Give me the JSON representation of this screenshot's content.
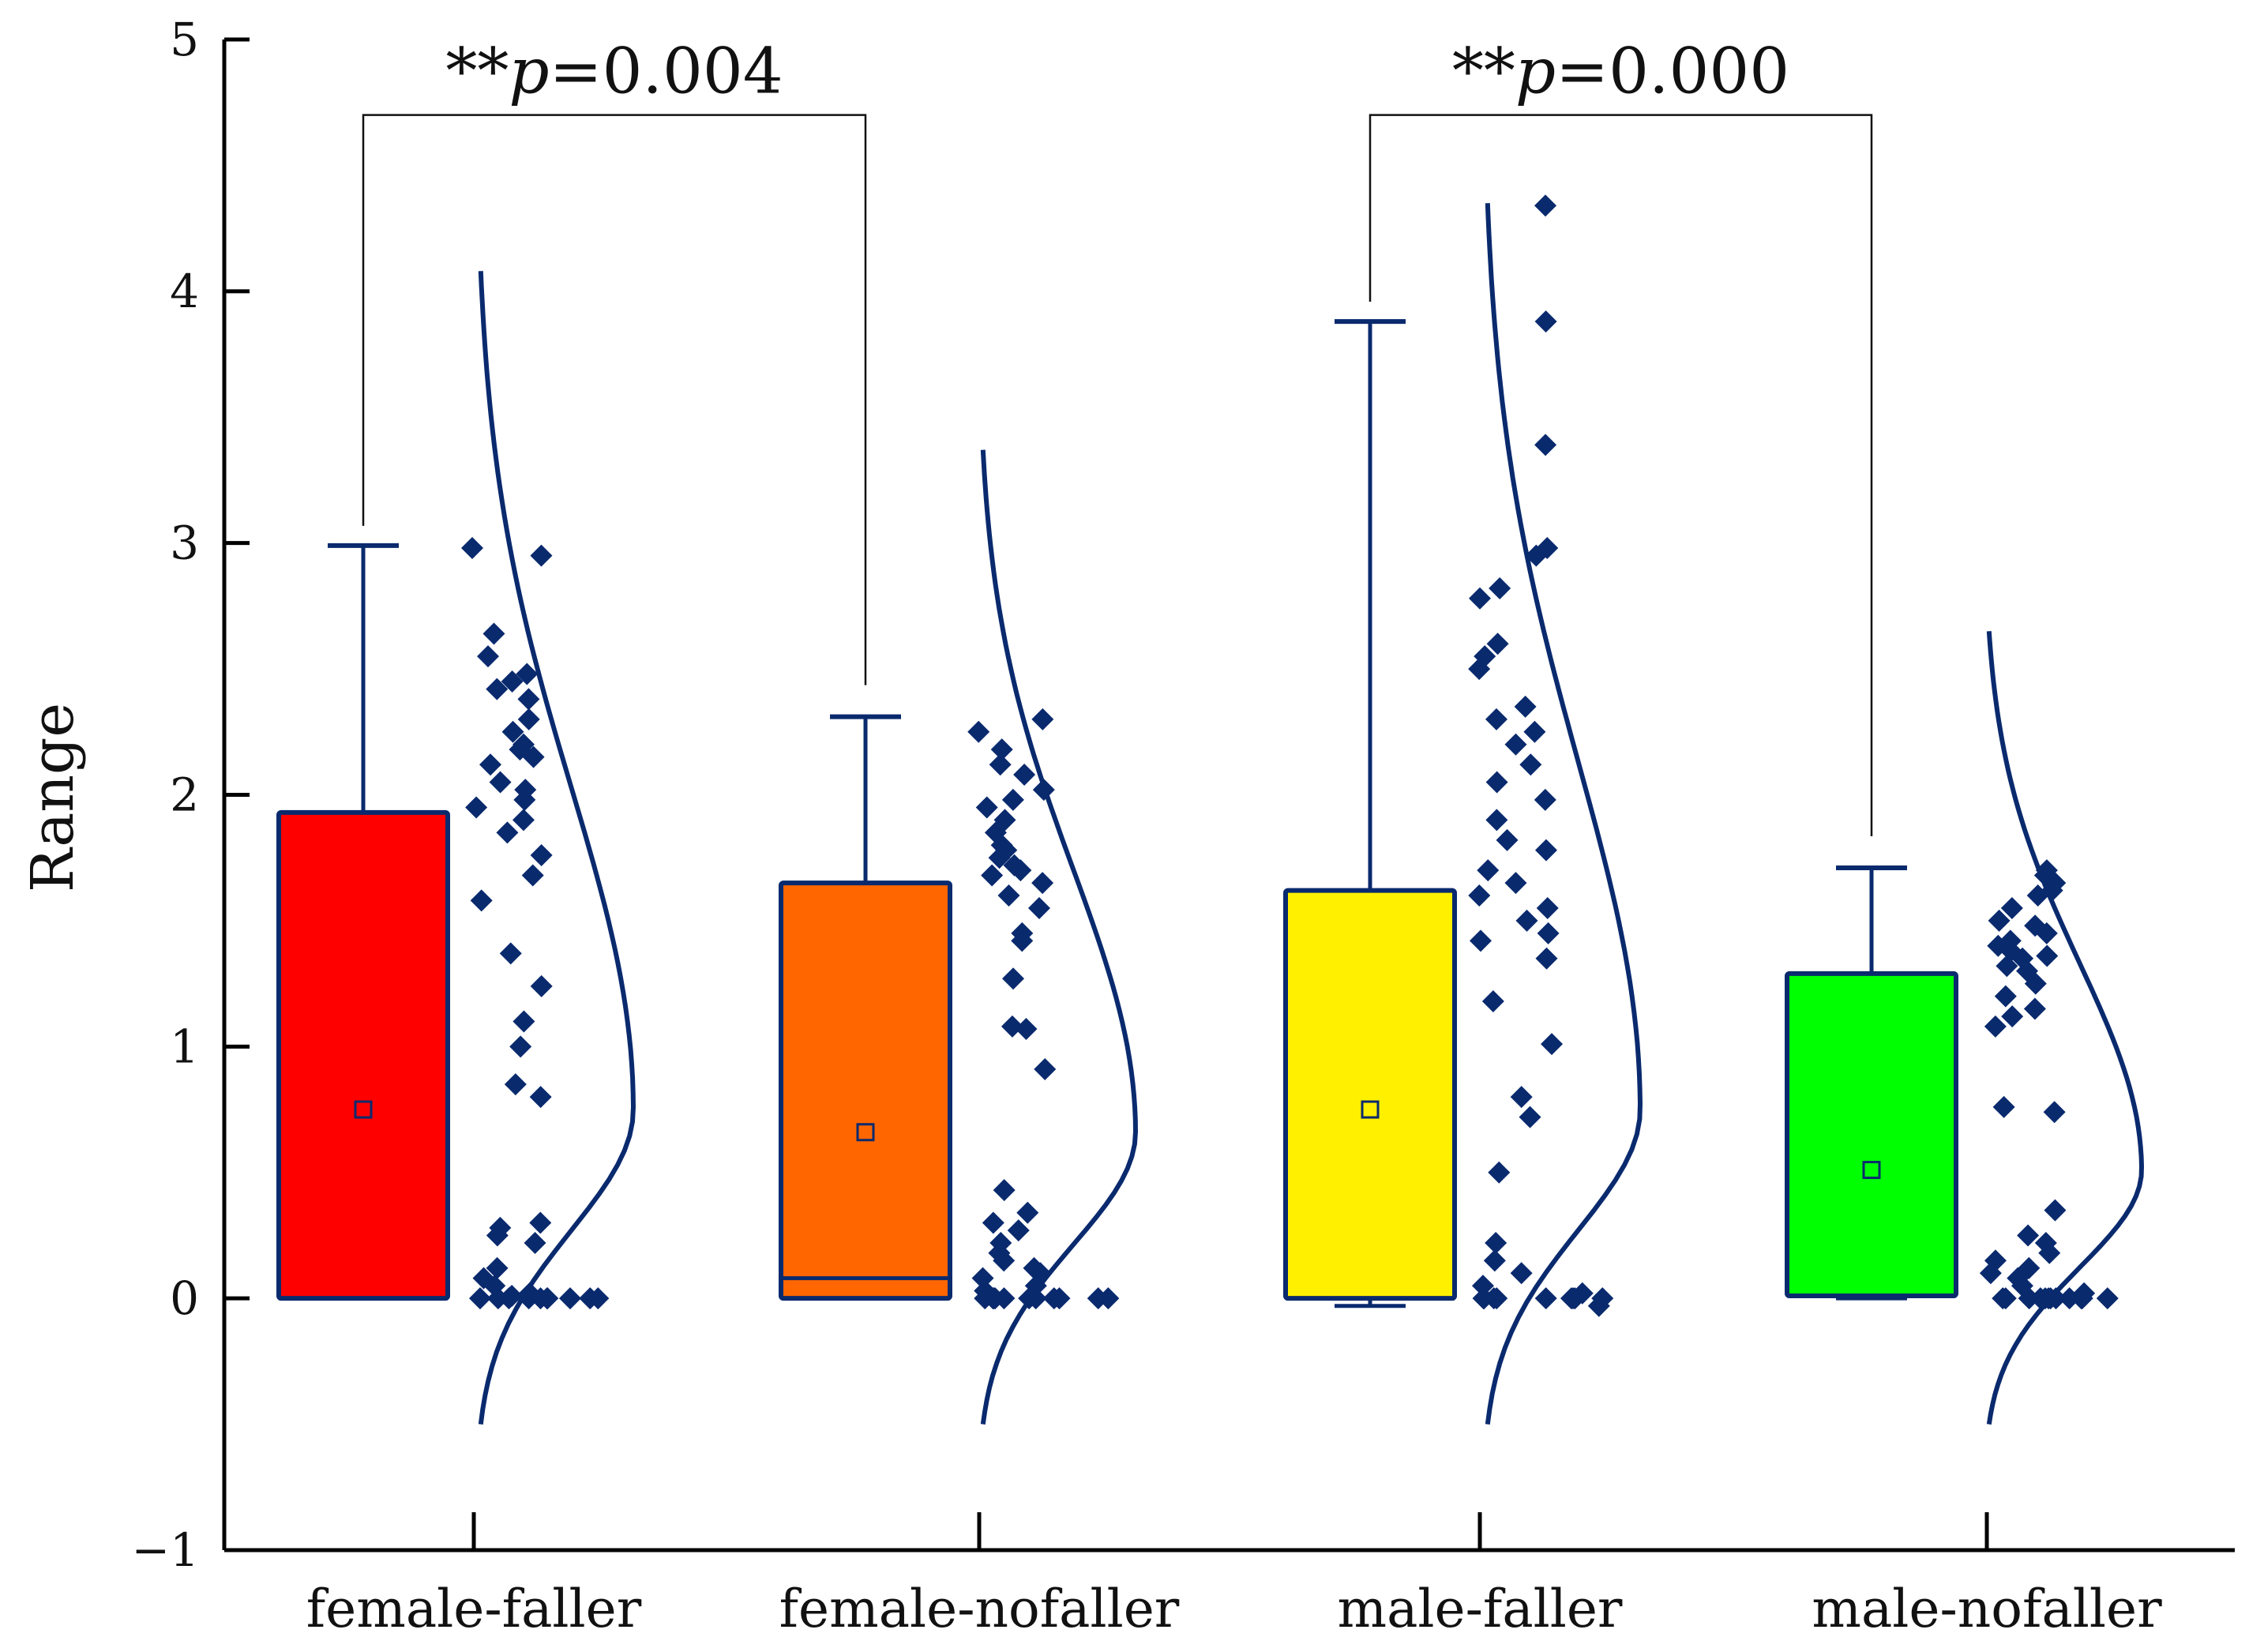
{
  "chart_data": {
    "type": "box",
    "title": "",
    "xlabel": "",
    "ylabel": "Range",
    "ylim": [
      -1,
      5
    ],
    "yticks": [
      -1,
      0,
      1,
      2,
      3,
      4,
      5
    ],
    "categories": [
      "female-faller",
      "female-nofaller",
      "male-faller",
      "male-nofaller"
    ],
    "series": [
      {
        "name": "female-faller",
        "color": "#ff0000",
        "q1": 0.0,
        "median": 0.0,
        "q3": 1.93,
        "mean": 0.75,
        "whisker_low": 0.0,
        "whisker_high": 2.99,
        "density_range": [
          -0.5,
          4.08
        ],
        "density_peak_y": 0.75,
        "points": [
          2.98,
          2.95,
          2.64,
          2.55,
          2.48,
          2.45,
          2.42,
          2.38,
          2.3,
          2.25,
          2.2,
          2.18,
          2.15,
          2.12,
          2.05,
          2.02,
          1.98,
          1.95,
          1.9,
          1.85,
          1.76,
          1.68,
          1.58,
          1.37,
          1.24,
          1.1,
          1.0,
          0.85,
          0.8,
          0.3,
          0.28,
          0.25,
          0.22,
          0.12,
          0.08,
          0.05,
          0.02,
          0.01,
          0.0,
          0.0,
          0.0,
          0.0,
          0.0,
          0.0,
          0.0,
          0.0,
          0.0,
          0.0
        ]
      },
      {
        "name": "female-nofaller",
        "color": "#ff6600",
        "q1": 0.0,
        "median": 0.08,
        "q3": 1.65,
        "mean": 0.66,
        "whisker_low": 0.0,
        "whisker_high": 2.31,
        "density_range": [
          -0.5,
          3.37
        ],
        "density_peak_y": 0.66,
        "points": [
          2.3,
          2.25,
          2.18,
          2.12,
          2.08,
          2.02,
          1.98,
          1.95,
          1.9,
          1.85,
          1.8,
          1.78,
          1.75,
          1.72,
          1.7,
          1.68,
          1.65,
          1.6,
          1.55,
          1.45,
          1.42,
          1.27,
          1.08,
          1.07,
          0.91,
          0.43,
          0.34,
          0.3,
          0.27,
          0.22,
          0.18,
          0.15,
          0.12,
          0.1,
          0.08,
          0.05,
          0.03,
          0.0,
          0.0,
          0.0,
          0.0,
          0.0,
          0.0,
          0.0,
          0.0,
          0.0,
          0.0,
          0.0
        ]
      },
      {
        "name": "male-faller",
        "color": "#fff000",
        "q1": 0.0,
        "median": 0.0,
        "q3": 1.62,
        "mean": 0.75,
        "whisker_low": -0.03,
        "whisker_high": 3.88,
        "density_range": [
          -0.5,
          4.35
        ],
        "density_peak_y": 0.75,
        "points": [
          4.34,
          3.88,
          3.39,
          2.98,
          2.95,
          2.82,
          2.78,
          2.6,
          2.55,
          2.5,
          2.35,
          2.3,
          2.25,
          2.2,
          2.12,
          2.05,
          1.98,
          1.9,
          1.82,
          1.78,
          1.7,
          1.65,
          1.6,
          1.55,
          1.5,
          1.45,
          1.42,
          1.35,
          1.18,
          1.01,
          0.8,
          0.72,
          0.5,
          0.22,
          0.15,
          0.1,
          0.05,
          0.02,
          0.0,
          0.0,
          0.0,
          0.0,
          0.0,
          0.0,
          0.0,
          0.0,
          -0.03,
          0.0
        ]
      },
      {
        "name": "male-nofaller",
        "color": "#00ff00",
        "q1": 0.01,
        "median": 0.01,
        "q3": 1.29,
        "mean": 0.51,
        "whisker_low": 0.0,
        "whisker_high": 1.71,
        "density_range": [
          -0.5,
          2.65
        ],
        "density_peak_y": 0.51,
        "points": [
          1.7,
          1.68,
          1.65,
          1.62,
          1.6,
          1.55,
          1.5,
          1.48,
          1.45,
          1.42,
          1.4,
          1.38,
          1.36,
          1.35,
          1.32,
          1.3,
          1.25,
          1.2,
          1.15,
          1.12,
          1.08,
          0.76,
          0.74,
          0.35,
          0.25,
          0.22,
          0.18,
          0.15,
          0.12,
          0.1,
          0.08,
          0.05,
          0.02,
          0.0,
          0.0,
          0.0,
          0.0,
          0.0,
          0.0,
          0.0,
          0.0,
          0.0,
          0.0,
          0.0,
          0.0
        ]
      }
    ],
    "significance": [
      {
        "pair": [
          0,
          1
        ],
        "label_stars": "**",
        "label_p": "p",
        "label_value": "=0.004",
        "bracket_y": 4.7
      },
      {
        "pair": [
          2,
          3
        ],
        "label_stars": "**",
        "label_p": "p",
        "label_value": "=0.000",
        "bracket_y": 4.7
      }
    ],
    "styles": {
      "outline": "#0a2a6e",
      "points": "#0a2a6e",
      "bracket": "#111111",
      "axis": "#000000"
    }
  }
}
